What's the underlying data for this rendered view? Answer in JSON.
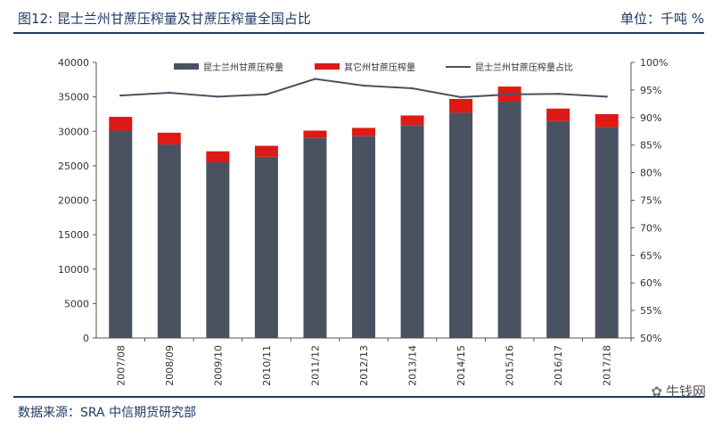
{
  "header": {
    "title": "图12: 昆士兰州甘蔗压榨量及甘蔗压榨量全国占比",
    "unit": "单位：千吨    %"
  },
  "footer": {
    "source": "数据来源：SRA  中信期货研究部",
    "watermark": "牛钱网"
  },
  "colors": {
    "series_qld": "#4a5262",
    "series_other": "#dd1a14",
    "series_share": "#4a5262",
    "header_blue": "#1f3a66"
  },
  "chart_data": {
    "type": "bar",
    "stacked": true,
    "categories": [
      "2007/08",
      "2008/09",
      "2009/10",
      "2010/11",
      "2011/12",
      "2012/13",
      "2013/14",
      "2014/15",
      "2015/16",
      "2016/17",
      "2017/18"
    ],
    "series": [
      {
        "name": "昆士兰州甘蔗压榨量",
        "type": "bar",
        "axis": "left",
        "values": [
          30100,
          28100,
          25500,
          26300,
          29100,
          29300,
          30900,
          32700,
          34300,
          31500,
          30600
        ]
      },
      {
        "name": "其它州甘蔗压榨量",
        "type": "bar",
        "axis": "left",
        "values": [
          2000,
          1700,
          1600,
          1600,
          1000,
          1200,
          1400,
          2000,
          2200,
          1800,
          1900
        ]
      },
      {
        "name": "昆士兰州甘蔗压榨量占比",
        "type": "line",
        "axis": "right",
        "values": [
          94.0,
          94.5,
          93.8,
          94.2,
          97.0,
          95.8,
          95.3,
          93.7,
          94.2,
          94.3,
          93.8
        ]
      }
    ],
    "ylim": [
      0,
      40000
    ],
    "yticks": [
      "0",
      "5000",
      "10000",
      "15000",
      "20000",
      "25000",
      "30000",
      "35000",
      "40000"
    ],
    "y2lim": [
      50,
      100
    ],
    "y2ticks": [
      "50%",
      "55%",
      "60%",
      "65%",
      "70%",
      "75%",
      "80%",
      "85%",
      "90%",
      "95%",
      "100%"
    ],
    "legend_position": "top",
    "grid": false
  }
}
